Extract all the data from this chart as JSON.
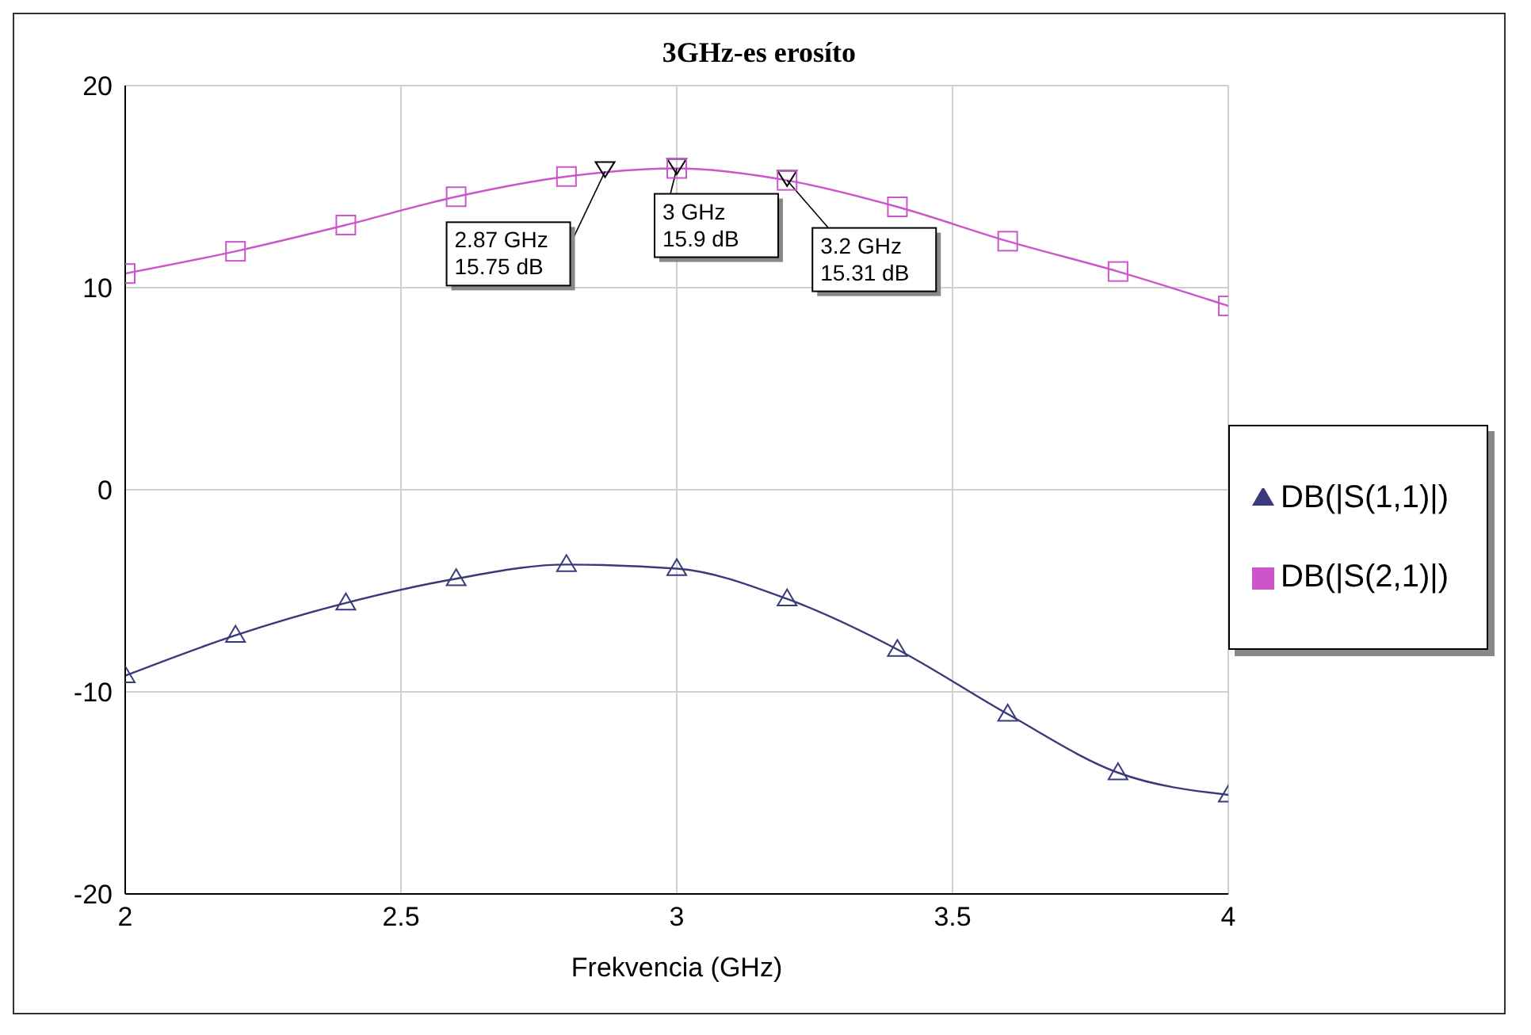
{
  "chart_data": {
    "type": "line",
    "title": "3GHz-es erosíto",
    "xlabel": "Frekvencia (GHz)",
    "x": [
      2,
      2.2,
      2.4,
      2.6,
      2.8,
      3,
      3.2,
      3.4,
      3.6,
      3.8,
      4
    ],
    "series": [
      {
        "name": "DB(|S(1,1)|)",
        "color": "#3a3a7a",
        "marker": "triangle",
        "values": [
          -9.2,
          -7.2,
          -5.6,
          -4.4,
          -3.7,
          -3.9,
          -5.4,
          -7.9,
          -11.1,
          -14.0,
          -15.1
        ]
      },
      {
        "name": "DB(|S(2,1)|)",
        "color": "#cc55cc",
        "marker": "square",
        "values": [
          10.7,
          11.8,
          13.1,
          14.5,
          15.5,
          15.9,
          15.31,
          14.0,
          12.3,
          10.8,
          9.1
        ]
      }
    ],
    "annotations": [
      {
        "text": "2.87 GHz\n15.75 dB",
        "x": 2.87,
        "y": 15.75
      },
      {
        "text": "3 GHz\n15.9 dB",
        "x": 3,
        "y": 15.9
      },
      {
        "text": "3.2 GHz\n15.31 dB",
        "x": 3.2,
        "y": 15.31
      }
    ],
    "xlim": [
      2,
      4
    ],
    "xticks": [
      2,
      2.5,
      3,
      3.5,
      4
    ],
    "ylim": [
      -20,
      20
    ],
    "yticks": [
      -20,
      -10,
      0,
      10,
      20
    ],
    "grid": true,
    "legend": "right",
    "line_style": "solid"
  }
}
